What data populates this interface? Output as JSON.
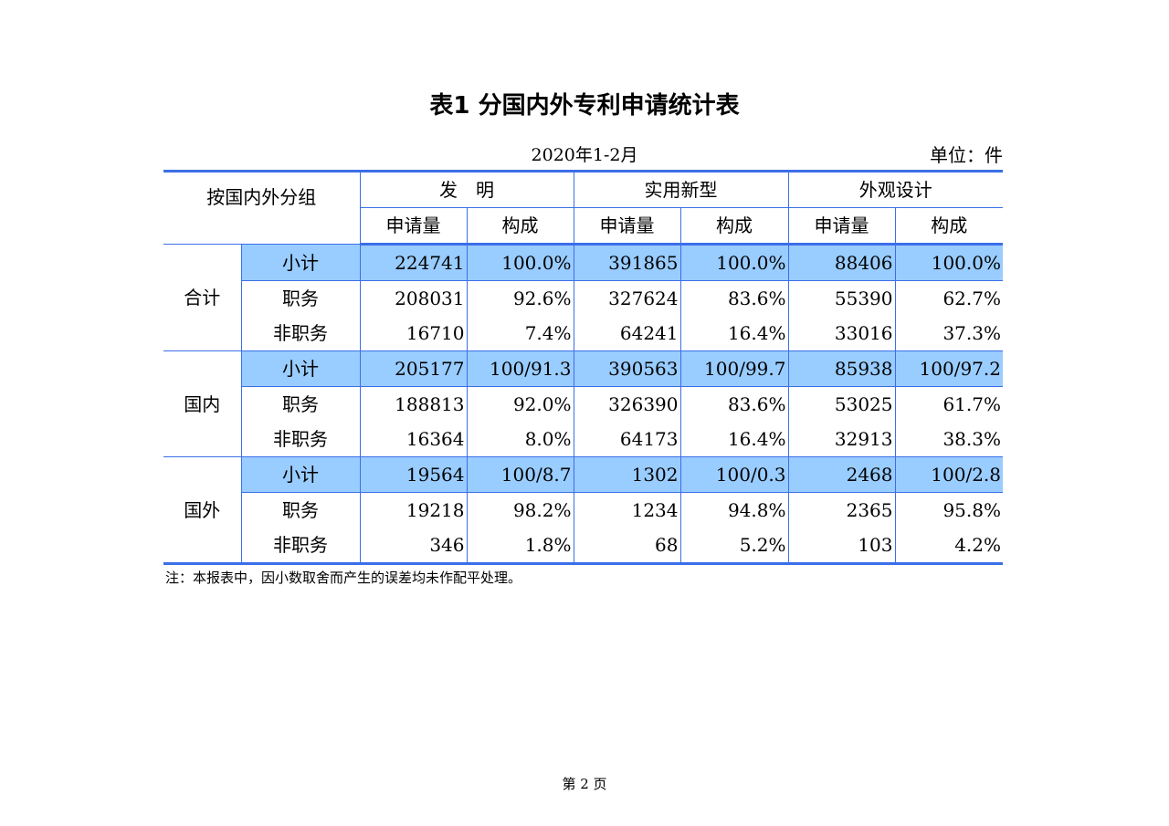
{
  "title": "表1 分国内外专利申请统计表",
  "period": "2020年1-2月",
  "unit": "单位：件",
  "header": {
    "group_label": "按国内外分组",
    "categories": [
      "发　明",
      "实用新型",
      "外观设计"
    ],
    "sub_columns": [
      "申请量",
      "构成",
      "申请量",
      "构成",
      "申请量",
      "构成"
    ]
  },
  "groups": [
    {
      "name": "合计",
      "rows": [
        {
          "label": "小计",
          "cells": [
            "224741",
            "100.0%",
            "391865",
            "100.0%",
            "88406",
            "100.0%"
          ]
        },
        {
          "label": "职务",
          "cells": [
            "208031",
            "92.6%",
            "327624",
            "83.6%",
            "55390",
            "62.7%"
          ]
        },
        {
          "label": "非职务",
          "cells": [
            "16710",
            "7.4%",
            "64241",
            "16.4%",
            "33016",
            "37.3%"
          ]
        }
      ]
    },
    {
      "name": "国内",
      "rows": [
        {
          "label": "小计",
          "cells": [
            "205177",
            "100/91.3",
            "390563",
            "100/99.7",
            "85938",
            "100/97.2"
          ]
        },
        {
          "label": "职务",
          "cells": [
            "188813",
            "92.0%",
            "326390",
            "83.6%",
            "53025",
            "61.7%"
          ]
        },
        {
          "label": "非职务",
          "cells": [
            "16364",
            "8.0%",
            "64173",
            "16.4%",
            "32913",
            "38.3%"
          ]
        }
      ]
    },
    {
      "name": "国外",
      "rows": [
        {
          "label": "小计",
          "cells": [
            "19564",
            "100/8.7",
            "1302",
            "100/0.3",
            "2468",
            "100/2.8"
          ]
        },
        {
          "label": "职务",
          "cells": [
            "19218",
            "98.2%",
            "1234",
            "94.8%",
            "2365",
            "95.8%"
          ]
        },
        {
          "label": "非职务",
          "cells": [
            "346",
            "1.8%",
            "68",
            "5.2%",
            "103",
            "4.2%"
          ]
        }
      ]
    }
  ],
  "note": "注：本报表中，因小数取舍而产生的误差均未作配平处理。",
  "footer": "第 2 页",
  "colors": {
    "border": "#3b6fe8",
    "subtotal_fill": "#99ccff"
  }
}
